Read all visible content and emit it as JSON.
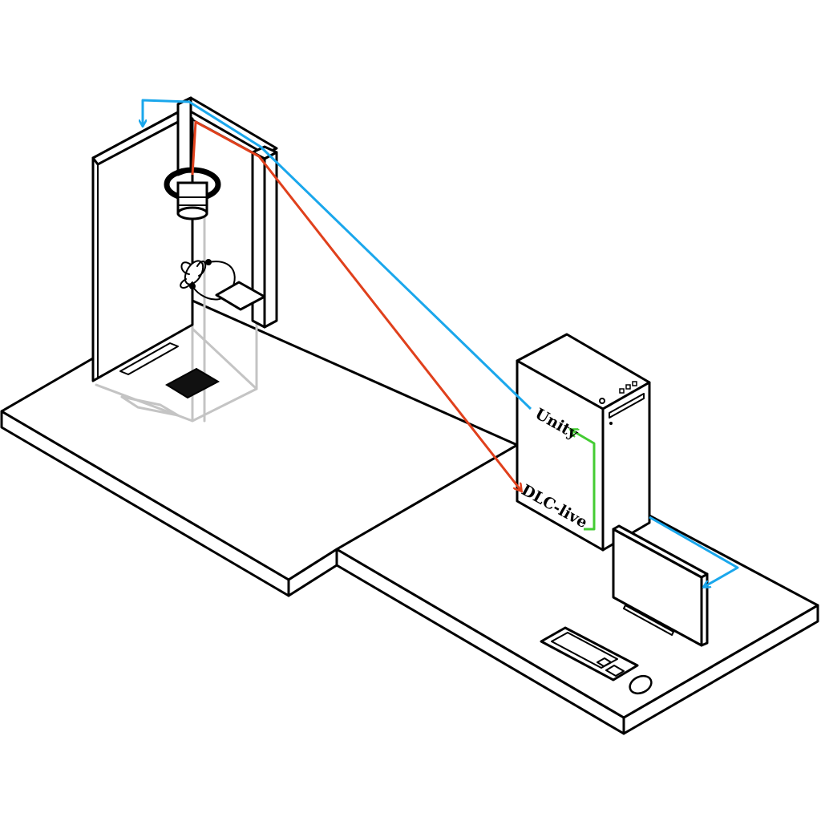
{
  "labels": {
    "unity": "Unity",
    "dlc_live": "DLC-live"
  },
  "colors": {
    "video_stream": "#e0401c",
    "unity_control": "#1aa7ec",
    "dlc_to_unity": "#44cc33",
    "outline": "#000000",
    "ghost_outline": "#c4c4c4"
  },
  "icons": {
    "camera": "camera-icon",
    "insect": "insect-icon",
    "computer": "computer-tower-icon",
    "monitor": "monitor-icon",
    "keyboard": "keyboard-icon",
    "mouse": "mouse-icon"
  }
}
